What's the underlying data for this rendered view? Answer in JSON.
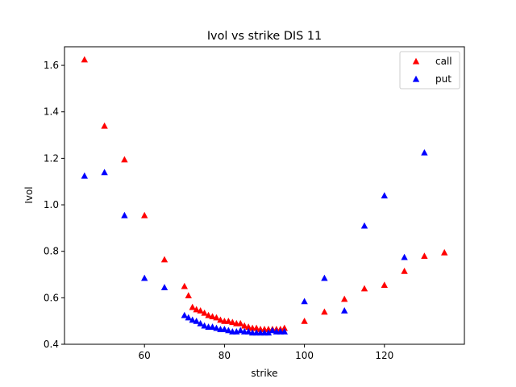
{
  "chart_data": {
    "type": "scatter",
    "title": "Ivol vs strike DIS 11",
    "xlabel": "strike",
    "ylabel": "Ivol",
    "xlim": [
      40,
      140
    ],
    "ylim": [
      0.4,
      1.68
    ],
    "x_ticks": [
      60,
      80,
      100,
      120
    ],
    "y_ticks": [
      0.4,
      0.6,
      0.8,
      1.0,
      1.2,
      1.4,
      1.6
    ],
    "grid": false,
    "legend_position": "top-right",
    "marker": "triangle-up",
    "series": [
      {
        "name": "call",
        "color": "#ff0000",
        "points": [
          [
            45,
            1.625
          ],
          [
            50,
            1.34
          ],
          [
            55,
            1.195
          ],
          [
            60,
            0.955
          ],
          [
            65,
            0.765
          ],
          [
            70,
            0.65
          ],
          [
            71,
            0.61
          ],
          [
            72,
            0.56
          ],
          [
            73,
            0.55
          ],
          [
            74,
            0.545
          ],
          [
            75,
            0.535
          ],
          [
            76,
            0.525
          ],
          [
            77,
            0.52
          ],
          [
            78,
            0.515
          ],
          [
            79,
            0.505
          ],
          [
            80,
            0.5
          ],
          [
            81,
            0.5
          ],
          [
            82,
            0.495
          ],
          [
            83,
            0.49
          ],
          [
            84,
            0.49
          ],
          [
            85,
            0.48
          ],
          [
            86,
            0.475
          ],
          [
            87,
            0.47
          ],
          [
            88,
            0.47
          ],
          [
            89,
            0.465
          ],
          [
            90,
            0.465
          ],
          [
            91,
            0.465
          ],
          [
            92,
            0.465
          ],
          [
            93,
            0.465
          ],
          [
            94,
            0.465
          ],
          [
            95,
            0.47
          ],
          [
            100,
            0.5
          ],
          [
            105,
            0.54
          ],
          [
            110,
            0.595
          ],
          [
            115,
            0.64
          ],
          [
            120,
            0.655
          ],
          [
            125,
            0.715
          ],
          [
            130,
            0.78
          ],
          [
            135,
            0.795
          ]
        ]
      },
      {
        "name": "put",
        "color": "#0000ff",
        "points": [
          [
            45,
            1.125
          ],
          [
            50,
            1.14
          ],
          [
            55,
            0.955
          ],
          [
            60,
            0.685
          ],
          [
            65,
            0.645
          ],
          [
            70,
            0.525
          ],
          [
            71,
            0.515
          ],
          [
            72,
            0.505
          ],
          [
            73,
            0.5
          ],
          [
            74,
            0.49
          ],
          [
            75,
            0.48
          ],
          [
            76,
            0.475
          ],
          [
            77,
            0.475
          ],
          [
            78,
            0.47
          ],
          [
            79,
            0.465
          ],
          [
            80,
            0.465
          ],
          [
            81,
            0.46
          ],
          [
            82,
            0.455
          ],
          [
            83,
            0.455
          ],
          [
            84,
            0.46
          ],
          [
            85,
            0.455
          ],
          [
            86,
            0.455
          ],
          [
            87,
            0.45
          ],
          [
            88,
            0.45
          ],
          [
            89,
            0.45
          ],
          [
            90,
            0.45
          ],
          [
            91,
            0.45
          ],
          [
            92,
            0.46
          ],
          [
            93,
            0.455
          ],
          [
            94,
            0.455
          ],
          [
            95,
            0.455
          ],
          [
            100,
            0.585
          ],
          [
            105,
            0.685
          ],
          [
            110,
            0.545
          ],
          [
            115,
            0.91
          ],
          [
            120,
            1.04
          ],
          [
            125,
            0.775
          ],
          [
            130,
            1.225
          ]
        ]
      }
    ]
  }
}
